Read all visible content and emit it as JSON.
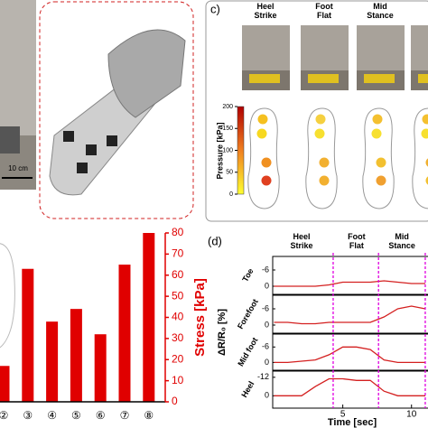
{
  "panel_c": {
    "label": "c)",
    "phases": [
      [
        "Heel",
        "Strike"
      ],
      [
        "Foot",
        "Flat"
      ],
      [
        "Mid",
        "Stance"
      ]
    ],
    "colorbar": {
      "label": "Pressure [kPa]",
      "lim": [
        0,
        200
      ],
      "ticks": [
        0,
        50,
        100,
        150,
        200
      ]
    }
  },
  "photo": {
    "scale_label": "10 cm"
  },
  "chart_data": [
    {
      "type": "bar",
      "categories": [
        "②",
        "③",
        "④",
        "⑤",
        "⑥",
        "⑦",
        "⑧"
      ],
      "values": [
        17,
        63,
        38,
        44,
        32,
        65,
        80
      ],
      "color": "#e00000",
      "ylabel": "Stress [kPa]",
      "ylim": [
        0,
        80
      ],
      "yticks": [
        0,
        10,
        20,
        30,
        40,
        50,
        60,
        70,
        80
      ]
    },
    {
      "type": "line",
      "label": "(d)",
      "xlabel": "Time [sec]",
      "ylabel": "ΔR/R₀ [%]",
      "x": [
        0,
        1,
        2,
        3,
        4,
        5,
        6,
        7,
        8,
        9,
        10,
        11
      ],
      "xlim": [
        -0.1,
        11.2
      ],
      "xticks": [
        5,
        10
      ],
      "phases": [
        [
          "Heel",
          "Strike"
        ],
        [
          "Foot",
          "Flat"
        ],
        [
          "Mid",
          "Stance"
        ]
      ],
      "phase_x": [
        2,
        6,
        9.3
      ],
      "phase_lines": [
        4.3,
        7.6,
        11
      ],
      "phase_line_color": "#e000e0",
      "series": [
        {
          "name": "Toe",
          "color": "#d42020",
          "values": [
            0,
            0,
            0,
            0,
            -0.5,
            -1.5,
            -1.5,
            -1.5,
            -2,
            -1.5,
            -1,
            -1
          ],
          "ylim": [
            3,
            -11
          ],
          "yticks": [
            -6,
            0
          ]
        },
        {
          "name": "Forefoot",
          "color": "#d42020",
          "values": [
            -1,
            -1,
            -0.5,
            -0.5,
            -1,
            -1,
            -1,
            -1,
            -3,
            -6,
            -7,
            -6
          ],
          "ylim": [
            3,
            -11
          ],
          "yticks": [
            -6,
            0
          ]
        },
        {
          "name": "Mid foot",
          "color": "#d42020",
          "values": [
            0,
            0,
            -0.5,
            -1,
            -3,
            -6,
            -6,
            -5,
            -1,
            0,
            0,
            0
          ],
          "ylim": [
            3,
            -11
          ],
          "yticks": [
            -6,
            0
          ]
        },
        {
          "name": "Heel",
          "color": "#d42020",
          "values": [
            0,
            0,
            0,
            -6,
            -11,
            -11,
            -10,
            -10,
            -3,
            0,
            0,
            0
          ],
          "ylim": [
            8,
            -16
          ],
          "yticks": [
            -12,
            0
          ]
        }
      ]
    }
  ]
}
